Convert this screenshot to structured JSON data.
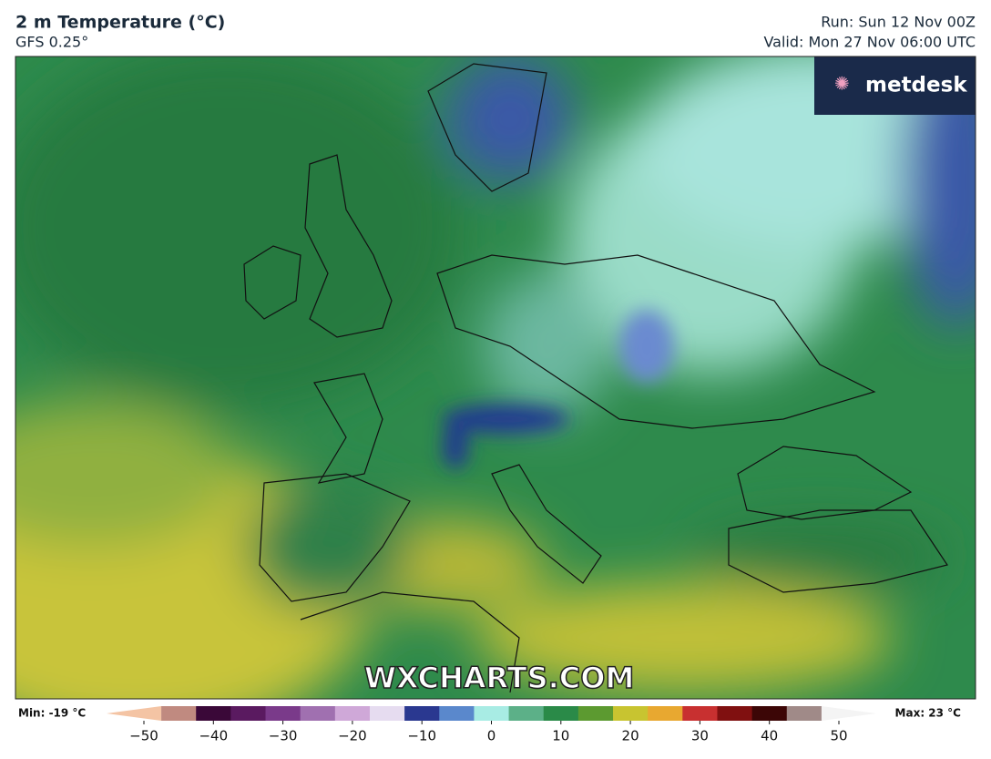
{
  "header": {
    "title": "2 m Temperature (°C)",
    "model": "GFS 0.25°",
    "run": "Run: Sun 12 Nov 00Z",
    "valid": "Valid: Mon 27 Nov 06:00 UTC"
  },
  "logo": "metdesk",
  "watermark": "WXCHARTS.COM",
  "colorbar": {
    "min_label": "Min: -19 °C",
    "max_label": "Max: 23 °C",
    "range": [
      -50,
      50
    ],
    "ticks": [
      {
        "value": -50,
        "label": "−50"
      },
      {
        "value": -40,
        "label": "−40"
      },
      {
        "value": -30,
        "label": "−30"
      },
      {
        "value": -20,
        "label": "−20"
      },
      {
        "value": -10,
        "label": "−10"
      },
      0,
      10,
      20,
      30,
      40,
      50
    ],
    "stops": [
      {
        "value": -50,
        "color": "#f4c4a4"
      },
      {
        "value": -45,
        "color": "#c08a80"
      },
      {
        "value": -40,
        "color": "#3a0838"
      },
      {
        "value": -35,
        "color": "#5a1a60"
      },
      {
        "value": -30,
        "color": "#7a3a8a"
      },
      {
        "value": -25,
        "color": "#a070b0"
      },
      {
        "value": -20,
        "color": "#cfa8d8"
      },
      {
        "value": -15,
        "color": "#e6dcf0"
      },
      {
        "value": -10,
        "color": "#2a3890"
      },
      {
        "value": -5,
        "color": "#5a88cc"
      },
      {
        "value": 0,
        "color": "#a8ece4"
      },
      {
        "value": 5,
        "color": "#5cb088"
      },
      {
        "value": 10,
        "color": "#2a8a48"
      },
      {
        "value": 15,
        "color": "#5c9a30"
      },
      {
        "value": 20,
        "color": "#c8c430"
      },
      {
        "value": 25,
        "color": "#e8a830"
      },
      {
        "value": 30,
        "color": "#c83030"
      },
      {
        "value": 35,
        "color": "#801010"
      },
      {
        "value": 40,
        "color": "#3c0606"
      },
      {
        "value": 45,
        "color": "#a08a88"
      },
      {
        "value": 50,
        "color": "#f4f4f4"
      }
    ]
  }
}
